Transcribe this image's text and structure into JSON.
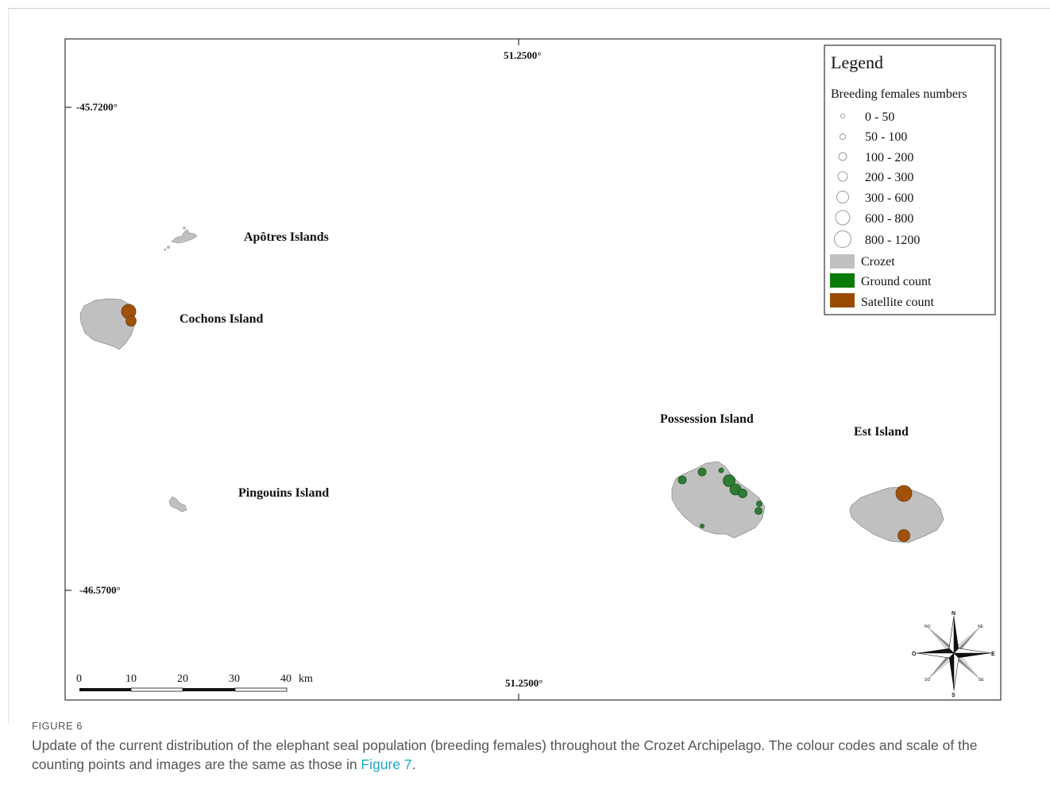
{
  "map": {
    "coordinate_labels": {
      "top_lon": "51.2500°",
      "bottom_lon": "51.2500°",
      "upper_lat": "-45.7200°",
      "lower_lat": "-46.5700°"
    },
    "islands": [
      {
        "id": "apotres",
        "label": "Apôtres Islands"
      },
      {
        "id": "cochons",
        "label": "Cochons Island"
      },
      {
        "id": "pingouins",
        "label": "Pingouins Island"
      },
      {
        "id": "possession",
        "label": "Possession Island"
      },
      {
        "id": "est",
        "label": "Est Island"
      }
    ],
    "colors": {
      "land": "#c0c0c0",
      "ground_count": "#2e7d32",
      "satellite_count": "#a0520b",
      "legend_ground": "#0a7a0a",
      "legend_satellite": "#9a4a00"
    },
    "scale_bar": {
      "ticks": [
        "0",
        "10",
        "20",
        "30",
        "40"
      ],
      "unit": "km"
    },
    "compass": {
      "n": "N",
      "s": "S",
      "e": "E",
      "o": "O",
      "no": "NO",
      "ne": "NE",
      "so": "SO",
      "se": "SE"
    }
  },
  "legend": {
    "title": "Legend",
    "subtitle": "Breeding females numbers",
    "size_classes": [
      "0 - 50",
      "50 - 100",
      "100 - 200",
      "200 - 300",
      "300 - 600",
      "600 - 800",
      "800 - 1200"
    ],
    "crozet": "Crozet",
    "ground_count": "Ground count",
    "satellite_count": "Satellite count"
  },
  "figure": {
    "label": "FIGURE 6",
    "caption_text": "Update of the current distribution of the elephant seal population (breeding females) throughout the Crozet Archipelago. The colour codes and scale of the counting points and images are the same as those in ",
    "caption_link": "Figure 7",
    "caption_end": "."
  }
}
